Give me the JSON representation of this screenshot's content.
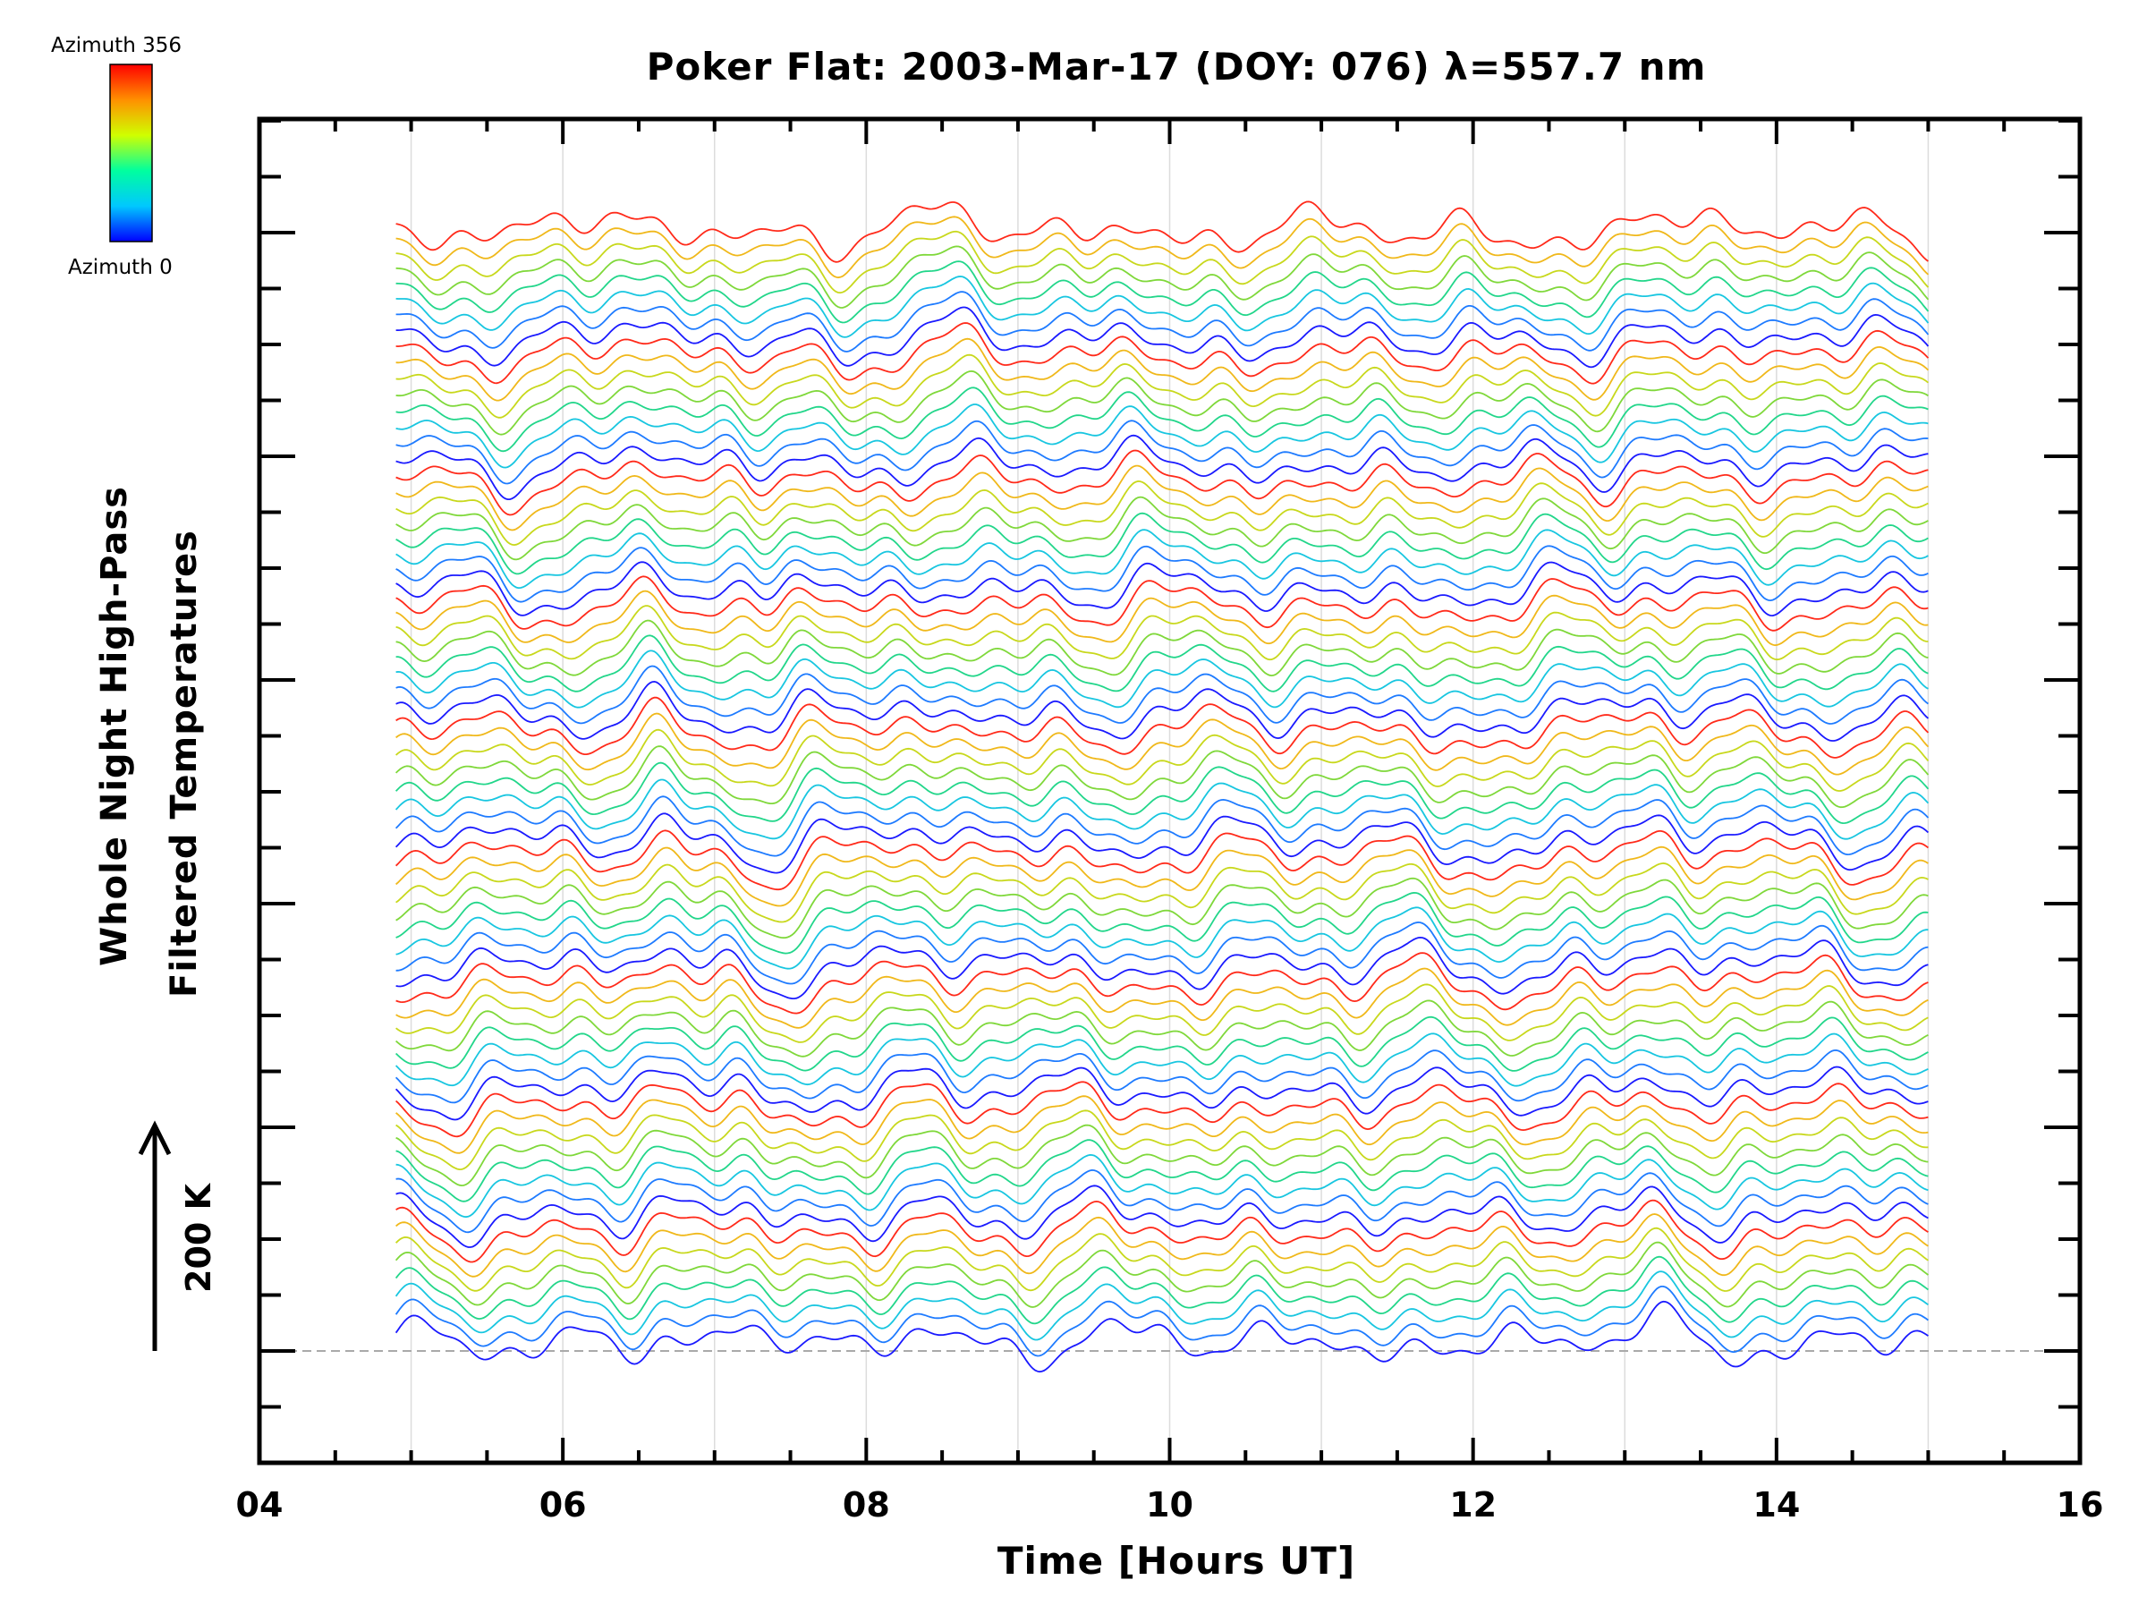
{
  "chart_data": {
    "type": "line",
    "title": "Poker Flat: 2003-Mar-17 (DOY: 076) λ=557.7 nm",
    "xlabel": "Time [Hours UT]",
    "ylabel_lines": [
      "Whole Night High-Pass",
      "Filtered Temperatures"
    ],
    "xlim": [
      4,
      16
    ],
    "x_ticks": [
      "04",
      "06",
      "08",
      "10",
      "12",
      "14",
      "16"
    ],
    "x_data_range": [
      4.9,
      15.0
    ],
    "scale_bar": {
      "label": "200 K",
      "kelvin": 200
    },
    "colorbar": {
      "top_label": "Azimuth 356",
      "bottom_label": "Azimuth 0",
      "min": 0,
      "max": 356,
      "colors": [
        "#0000ff",
        "#00c8ff",
        "#00ff9f",
        "#d0ff00",
        "#ff9000",
        "#ff0000"
      ]
    },
    "series_count": 72,
    "baseline_dashed": true,
    "grid": "vertical lines at each hour",
    "colormap": [
      "#1a1aff",
      "#1e7bff",
      "#18c6e0",
      "#22d68a",
      "#7fd83a",
      "#c8d81c",
      "#f0b81a",
      "#ff2a1a"
    ]
  }
}
